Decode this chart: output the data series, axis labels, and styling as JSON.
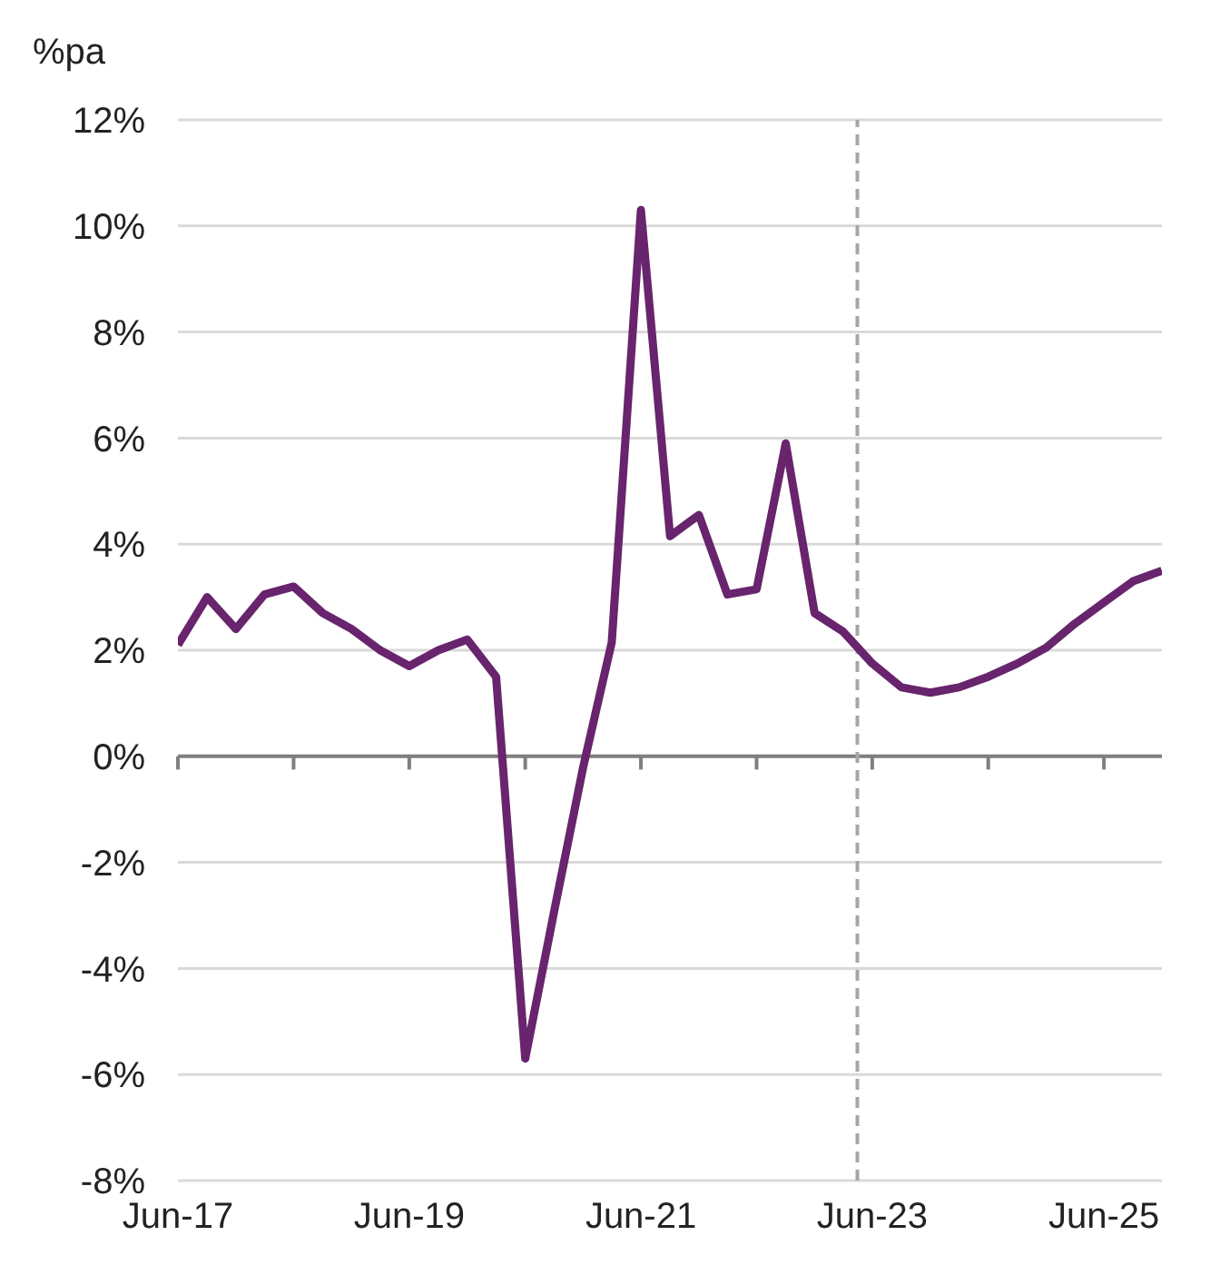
{
  "chart_data": {
    "type": "line",
    "ylabel": "%pa",
    "x": [
      "2017-06",
      "2017-09",
      "2017-12",
      "2018-03",
      "2018-06",
      "2018-09",
      "2018-12",
      "2019-03",
      "2019-06",
      "2019-09",
      "2019-12",
      "2020-03",
      "2020-06",
      "2020-09",
      "2020-12",
      "2021-03",
      "2021-06",
      "2021-09",
      "2021-12",
      "2022-03",
      "2022-06",
      "2022-09",
      "2022-12",
      "2023-03",
      "2023-06",
      "2023-09",
      "2023-12",
      "2024-03",
      "2024-06",
      "2024-09",
      "2024-12",
      "2025-03",
      "2025-06",
      "2025-09",
      "2025-12"
    ],
    "series": [
      {
        "color": "#68246d",
        "values": [
          2.1,
          3.0,
          2.4,
          3.05,
          3.2,
          2.7,
          2.4,
          2.0,
          1.7,
          2.0,
          2.2,
          1.5,
          -5.7,
          -2.9,
          -0.2,
          2.15,
          10.3,
          4.15,
          4.55,
          3.05,
          3.15,
          5.9,
          2.7,
          2.35,
          1.75,
          1.3,
          1.2,
          1.3,
          1.5,
          1.75,
          2.05,
          2.5,
          2.9,
          3.3,
          3.5
        ]
      }
    ],
    "xlim": [
      "2017-06",
      "2025-12"
    ],
    "xticks": [
      {
        "value": "2017-06",
        "label": "Jun-17"
      },
      {
        "value": "2018-06",
        "label": null
      },
      {
        "value": "2019-06",
        "label": "Jun-19"
      },
      {
        "value": "2020-06",
        "label": null
      },
      {
        "value": "2021-06",
        "label": "Jun-21"
      },
      {
        "value": "2022-06",
        "label": null
      },
      {
        "value": "2023-06",
        "label": "Jun-23"
      },
      {
        "value": "2024-06",
        "label": null
      },
      {
        "value": "2025-06",
        "label": "Jun-25"
      }
    ],
    "ylim": [
      -8,
      12
    ],
    "yticks": [
      {
        "value": -8,
        "label": "-8%"
      },
      {
        "value": -6,
        "label": "-6%"
      },
      {
        "value": -4,
        "label": "-4%"
      },
      {
        "value": -2,
        "label": "-2%"
      },
      {
        "value": 0,
        "label": "0%"
      },
      {
        "value": 2,
        "label": "2%"
      },
      {
        "value": 4,
        "label": "4%"
      },
      {
        "value": 6,
        "label": "6%"
      },
      {
        "value": 8,
        "label": "8%"
      },
      {
        "value": 10,
        "label": "10%"
      },
      {
        "value": 12,
        "label": "12%"
      }
    ],
    "ref_lines": [
      {
        "axis": "x",
        "value": "2023-04-15",
        "color": "#a6a6a6",
        "line_style": "dashed"
      }
    ],
    "grid": "y",
    "marker": "none",
    "line_style": "solid"
  }
}
